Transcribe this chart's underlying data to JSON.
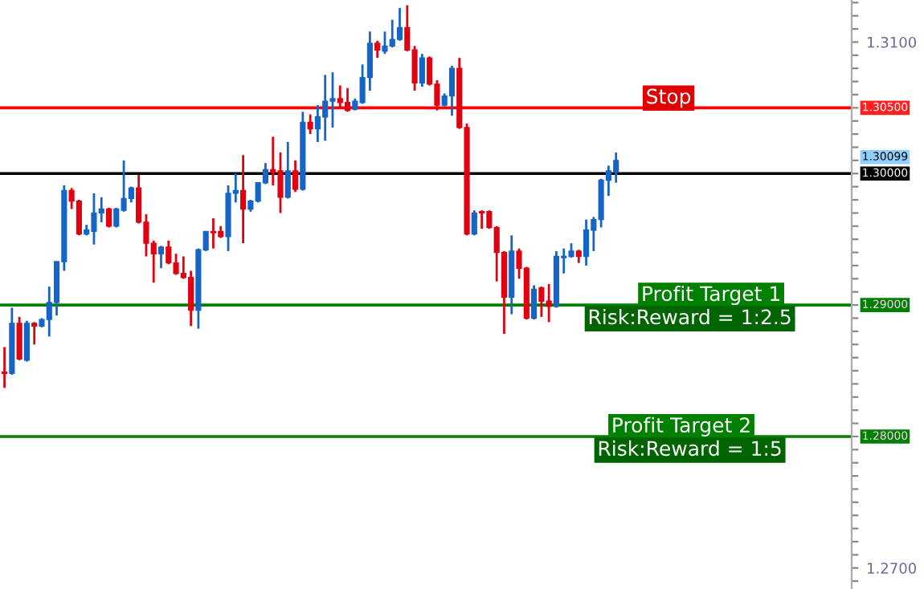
{
  "chart_data": {
    "type": "candlestick",
    "categories": [
      null,
      null,
      null,
      null,
      null,
      null,
      null,
      null,
      null,
      null,
      null,
      null,
      null,
      null,
      null,
      null,
      null,
      null,
      null,
      null,
      null,
      null,
      null,
      null,
      null,
      null,
      null,
      null,
      null,
      null,
      null,
      null,
      null,
      null,
      null,
      null,
      null,
      null,
      null,
      null,
      null,
      null,
      null,
      null,
      null,
      null,
      null,
      null,
      null,
      null,
      null,
      null,
      null,
      null,
      null,
      null,
      null,
      null,
      null,
      null,
      null,
      null,
      null,
      null,
      null,
      null,
      null,
      null,
      null,
      null,
      null,
      null,
      null,
      null,
      null,
      null,
      null,
      null,
      null,
      null,
      null,
      null,
      null,
      null,
      null,
      null,
      null,
      null,
      null,
      null,
      null,
      null,
      null,
      null,
      null,
      null,
      null,
      null,
      null,
      null,
      null,
      null,
      null,
      null,
      null,
      null,
      null,
      null,
      null,
      null,
      null,
      null,
      null,
      null
    ],
    "ohlc": [
      [
        1.2849,
        1.2868,
        1.2837,
        1.2848
      ],
      [
        1.2848,
        1.2898,
        1.2847,
        1.2886
      ],
      [
        1.2886,
        1.2891,
        1.2858,
        1.2859
      ],
      [
        1.2858,
        1.2888,
        1.2857,
        1.2886
      ],
      [
        1.2886,
        1.2887,
        1.287,
        1.2884
      ],
      [
        1.2884,
        1.289,
        1.2883,
        1.2889
      ],
      [
        1.2889,
        1.2914,
        1.2876,
        1.2902
      ],
      [
        1.2902,
        1.2933,
        1.2892,
        1.2933
      ],
      [
        1.2933,
        1.2991,
        1.2926,
        1.2987
      ],
      [
        1.2987,
        1.2989,
        1.2973,
        1.2979
      ],
      [
        1.2979,
        1.298,
        1.2953,
        1.2954
      ],
      [
        1.2954,
        1.2961,
        1.2953,
        1.2957
      ],
      [
        1.2956,
        1.2985,
        1.2946,
        1.297
      ],
      [
        1.297,
        1.2982,
        1.2963,
        1.2973
      ],
      [
        1.2973,
        1.2974,
        1.2959,
        1.296
      ],
      [
        1.296,
        1.2974,
        1.2959,
        1.2973
      ],
      [
        1.2972,
        1.301,
        1.2971,
        1.2981
      ],
      [
        1.2981,
        1.299,
        1.2978,
        1.2989
      ],
      [
        1.2989,
        1.2999,
        1.2962,
        1.2963
      ],
      [
        1.2963,
        1.2969,
        1.2937,
        1.2947
      ],
      [
        1.2947,
        1.2949,
        1.2917,
        1.2939
      ],
      [
        1.2939,
        1.2945,
        1.2928,
        1.2944
      ],
      [
        1.2944,
        1.2949,
        1.2931,
        1.2932
      ],
      [
        1.2932,
        1.2939,
        1.2923,
        1.2924
      ],
      [
        1.2924,
        1.2937,
        1.292,
        1.2921
      ],
      [
        1.2921,
        1.2926,
        1.2884,
        1.2896
      ],
      [
        1.2896,
        1.2943,
        1.2882,
        1.2942
      ],
      [
        1.2942,
        1.2956,
        1.2941,
        1.2956
      ],
      [
        1.2956,
        1.2966,
        1.2943,
        1.2955
      ],
      [
        1.2956,
        1.296,
        1.2951,
        1.2952
      ],
      [
        1.2952,
        1.2991,
        1.2941,
        1.2985
      ],
      [
        1.2985,
        1.3,
        1.2978,
        1.2987
      ],
      [
        1.2987,
        1.3014,
        1.2947,
        1.2973
      ],
      [
        1.2973,
        1.298,
        1.2971,
        1.2979
      ],
      [
        1.2979,
        1.2993,
        1.2978,
        1.2993
      ],
      [
        1.2993,
        1.3008,
        1.2992,
        1.3003
      ],
      [
        1.3003,
        1.3028,
        1.2991,
        1.3001
      ],
      [
        1.3002,
        1.3016,
        1.297,
        1.2982
      ],
      [
        1.2982,
        1.3024,
        1.2981,
        1.3002
      ],
      [
        1.3002,
        1.301,
        1.2986,
        1.2988
      ],
      [
        1.2988,
        1.3047,
        1.2987,
        1.3039
      ],
      [
        1.3039,
        1.3045,
        1.303,
        1.3034
      ],
      [
        1.3034,
        1.3052,
        1.3024,
        1.3043
      ],
      [
        1.3043,
        1.3075,
        1.3025,
        1.3055
      ],
      [
        1.3055,
        1.3077,
        1.3035,
        1.3057
      ],
      [
        1.3057,
        1.3067,
        1.305,
        1.3054
      ],
      [
        1.3054,
        1.3065,
        1.3047,
        1.3048
      ],
      [
        1.3049,
        1.3057,
        1.3048,
        1.3055
      ],
      [
        1.3054,
        1.3083,
        1.3053,
        1.3073
      ],
      [
        1.3073,
        1.3108,
        1.3063,
        1.3099
      ],
      [
        1.3099,
        1.3101,
        1.3088,
        1.3094
      ],
      [
        1.3093,
        1.3108,
        1.3091,
        1.3097
      ],
      [
        1.3097,
        1.3117,
        1.3096,
        1.3102
      ],
      [
        1.3102,
        1.3126,
        1.3101,
        1.3111
      ],
      [
        1.3111,
        1.3128,
        1.3093,
        1.3094
      ],
      [
        1.3094,
        1.3097,
        1.3063,
        1.3069
      ],
      [
        1.3069,
        1.3091,
        1.3066,
        1.3088
      ],
      [
        1.3088,
        1.3089,
        1.3067,
        1.3068
      ],
      [
        1.3068,
        1.3071,
        1.3048,
        1.3052
      ],
      [
        1.3052,
        1.3061,
        1.3051,
        1.3059
      ],
      [
        1.3059,
        1.3082,
        1.3044,
        1.308
      ],
      [
        1.308,
        1.3088,
        1.3034,
        1.3035
      ],
      [
        1.3035,
        1.3038,
        1.2953,
        1.2954
      ],
      [
        1.2954,
        1.2972,
        1.2953,
        1.297
      ],
      [
        1.2971,
        1.2972,
        1.2958,
        1.297
      ],
      [
        1.2971,
        1.2972,
        1.2958,
        1.2959
      ],
      [
        1.2959,
        1.296,
        1.2918,
        1.294
      ],
      [
        1.294,
        1.2941,
        1.2878,
        1.2906
      ],
      [
        1.2906,
        1.2953,
        1.2893,
        1.2941
      ],
      [
        1.2941,
        1.2943,
        1.292,
        1.2928
      ],
      [
        1.2928,
        1.2929,
        1.2889,
        1.289
      ],
      [
        1.289,
        1.2915,
        1.2889,
        1.2912
      ],
      [
        1.2913,
        1.2914,
        1.2891,
        1.2903
      ],
      [
        1.2903,
        1.2916,
        1.2887,
        1.2899
      ],
      [
        1.2899,
        1.2941,
        1.2898,
        1.2937
      ],
      [
        1.2936,
        1.2943,
        1.2924,
        1.2937
      ],
      [
        1.2937,
        1.2947,
        1.2936,
        1.2941
      ],
      [
        1.2941,
        1.2942,
        1.2932,
        1.2937
      ],
      [
        1.2937,
        1.2965,
        1.293,
        1.2957
      ],
      [
        1.2957,
        1.2967,
        1.2941,
        1.2965
      ],
      [
        1.2965,
        1.2996,
        1.2959,
        1.2995
      ],
      [
        1.2995,
        1.3006,
        1.2983,
        1.3002
      ],
      [
        1.3001,
        1.3016,
        1.2993,
        1.301
      ],
      null,
      null,
      null,
      null,
      null,
      null,
      null,
      null,
      null,
      null,
      null,
      null,
      null,
      null,
      null,
      null,
      null,
      null,
      null,
      null,
      null,
      null,
      null,
      null,
      null,
      null,
      null,
      null,
      null,
      null,
      null
    ],
    "colors": [
      "#e00010",
      "#1565c8",
      "#e00010",
      "#1565c8",
      "#e00010",
      "#1565c8",
      "#1565c8",
      "#1565c8",
      "#1565c8",
      "#e00010",
      "#e00010",
      "#1565c8",
      "#1565c8",
      "#1565c8",
      "#e00010",
      "#1565c8",
      "#1565c8",
      "#1565c8",
      "#e00010",
      "#e00010",
      "#e00010",
      "#1565c8",
      "#e00010",
      "#e00010",
      "#e00010",
      "#e00010",
      "#1565c8",
      "#1565c8",
      "#e00010",
      "#e00010",
      "#1565c8",
      "#1565c8",
      "#e00010",
      "#1565c8",
      "#1565c8",
      "#1565c8",
      "#e00010",
      "#e00010",
      "#1565c8",
      "#e00010",
      "#1565c8",
      "#e00010",
      "#1565c8",
      "#1565c8",
      "#1565c8",
      "#e00010",
      "#e00010",
      "#1565c8",
      "#1565c8",
      "#1565c8",
      "#e00010",
      "#1565c8",
      "#1565c8",
      "#1565c8",
      "#e00010",
      "#e00010",
      "#1565c8",
      "#e00010",
      "#e00010",
      "#1565c8",
      "#1565c8",
      "#e00010",
      "#e00010",
      "#1565c8",
      "#e00010",
      "#e00010",
      "#e00010",
      "#e00010",
      "#1565c8",
      "#e00010",
      "#e00010",
      "#1565c8",
      "#e00010",
      "#e00010",
      "#1565c8",
      "#1565c8",
      "#1565c8",
      "#e00010",
      "#1565c8",
      "#1565c8",
      "#1565c8",
      "#1565c8",
      "#1565c8",
      null,
      null,
      null,
      null,
      null,
      null,
      null,
      null,
      null,
      null,
      null,
      null,
      null,
      null,
      null,
      null,
      null,
      null,
      null,
      null,
      null,
      null,
      null,
      null,
      null,
      null,
      null,
      null,
      null,
      null,
      null
    ],
    "ylim": [
      1.2684,
      1.3132
    ],
    "yticks": [
      {
        "value": 1.269,
        "label": null
      },
      {
        "value": 1.27,
        "label": "1.2700"
      },
      {
        "value": 1.271,
        "label": null
      },
      {
        "value": 1.272,
        "label": null
      },
      {
        "value": 1.273,
        "label": null
      },
      {
        "value": 1.274,
        "label": null
      },
      {
        "value": 1.275,
        "label": null
      },
      {
        "value": 1.276,
        "label": null
      },
      {
        "value": 1.277,
        "label": null
      },
      {
        "value": 1.278,
        "label": null
      },
      {
        "value": 1.279,
        "label": null
      },
      {
        "value": 1.28,
        "label": null
      },
      {
        "value": 1.281,
        "label": null
      },
      {
        "value": 1.282,
        "label": null
      },
      {
        "value": 1.283,
        "label": null
      },
      {
        "value": 1.284,
        "label": null
      },
      {
        "value": 1.285,
        "label": null
      },
      {
        "value": 1.286,
        "label": null
      },
      {
        "value": 1.287,
        "label": null
      },
      {
        "value": 1.288,
        "label": null
      },
      {
        "value": 1.289,
        "label": null
      },
      {
        "value": 1.29,
        "label": null
      },
      {
        "value": 1.291,
        "label": null
      },
      {
        "value": 1.292,
        "label": null
      },
      {
        "value": 1.293,
        "label": null
      },
      {
        "value": 1.294,
        "label": null
      },
      {
        "value": 1.295,
        "label": null
      },
      {
        "value": 1.296,
        "label": null
      },
      {
        "value": 1.297,
        "label": null
      },
      {
        "value": 1.298,
        "label": null
      },
      {
        "value": 1.299,
        "label": null
      },
      {
        "value": 1.3,
        "label": null
      },
      {
        "value": 1.301,
        "label": null
      },
      {
        "value": 1.302,
        "label": null
      },
      {
        "value": 1.303,
        "label": null
      },
      {
        "value": 1.304,
        "label": null
      },
      {
        "value": 1.305,
        "label": null
      },
      {
        "value": 1.306,
        "label": null
      },
      {
        "value": 1.307,
        "label": null
      },
      {
        "value": 1.308,
        "label": null
      },
      {
        "value": 1.309,
        "label": null
      },
      {
        "value": 1.31,
        "label": "1.3100"
      },
      {
        "value": 1.311,
        "label": null
      },
      {
        "value": 1.312,
        "label": null
      },
      {
        "value": 1.313,
        "label": null
      }
    ],
    "ref_lines": [
      {
        "axis": "y",
        "value": 1.305,
        "label": "Stop",
        "color": "#ff0000"
      },
      {
        "axis": "y",
        "value": 1.3,
        "color": "#000000"
      },
      {
        "axis": "y",
        "value": 1.29,
        "label": "Profit Target 1",
        "color": "#008000"
      },
      {
        "axis": "y",
        "value": 1.28,
        "label": "Profit Target 2",
        "color": "#008000"
      }
    ],
    "annotations": [
      {
        "text": "Risk:Reward = 1:2.5",
        "y": 1.29
      },
      {
        "text": "Risk:Reward = 1:5",
        "y": 1.28
      },
      "1.30500",
      "1.30099",
      "1.30000",
      "1.29000",
      "1.28000"
    ],
    "grid": false,
    "legend": false
  }
}
